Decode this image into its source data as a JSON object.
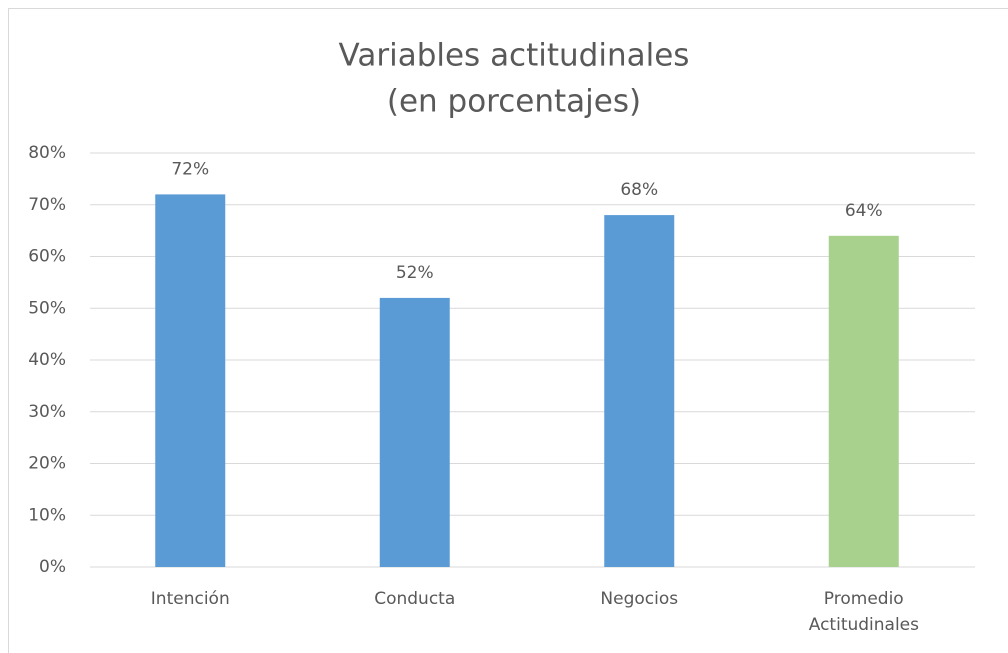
{
  "chart_data": {
    "type": "bar",
    "title": "Variables actitudinales",
    "subtitle": "(en porcentajes)",
    "categories": [
      "Intención",
      "Conducta",
      "Negocios",
      "Promedio Actitudinales"
    ],
    "values": [
      72,
      52,
      68,
      64
    ],
    "value_labels": [
      "72%",
      "52%",
      "68%",
      "64%"
    ],
    "colors": [
      "#5b9bd5",
      "#5b9bd5",
      "#5b9bd5",
      "#a9d18e"
    ],
    "ylim": [
      0,
      80
    ],
    "yticks": [
      {
        "value": 0,
        "label": "0%"
      },
      {
        "value": 10,
        "label": "10%"
      },
      {
        "value": 20,
        "label": "20%"
      },
      {
        "value": 30,
        "label": "30%"
      },
      {
        "value": 40,
        "label": "40%"
      },
      {
        "value": 50,
        "label": "50%"
      },
      {
        "value": 60,
        "label": "60%"
      },
      {
        "value": 70,
        "label": "70%"
      },
      {
        "value": 80,
        "label": "80%"
      }
    ],
    "grid": true
  }
}
